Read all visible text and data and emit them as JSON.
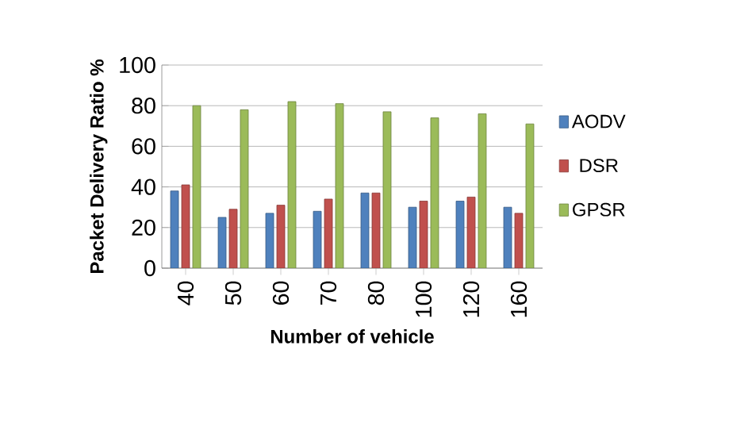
{
  "chart_data": {
    "type": "bar",
    "xlabel": "Number of vehicle",
    "ylabel": "Packet Delivery Ratio %",
    "categories": [
      "40",
      "50",
      "60",
      "70",
      "80",
      "100",
      "120",
      "160"
    ],
    "series": [
      {
        "name": "AODV",
        "color": "#4f81bd",
        "values": [
          38,
          25,
          27,
          28,
          37,
          30,
          33,
          30
        ]
      },
      {
        "name": "DSR",
        "color": "#c0504d",
        "values": [
          41,
          29,
          31,
          34,
          37,
          33,
          35,
          27
        ]
      },
      {
        "name": "GPSR",
        "color": "#9bbb59",
        "values": [
          80,
          78,
          82,
          81,
          77,
          74,
          76,
          71
        ]
      }
    ],
    "ylim": [
      0,
      100
    ],
    "yticks": [
      0,
      20,
      40,
      60,
      80,
      100
    ],
    "grid": "y",
    "legend": "right"
  }
}
